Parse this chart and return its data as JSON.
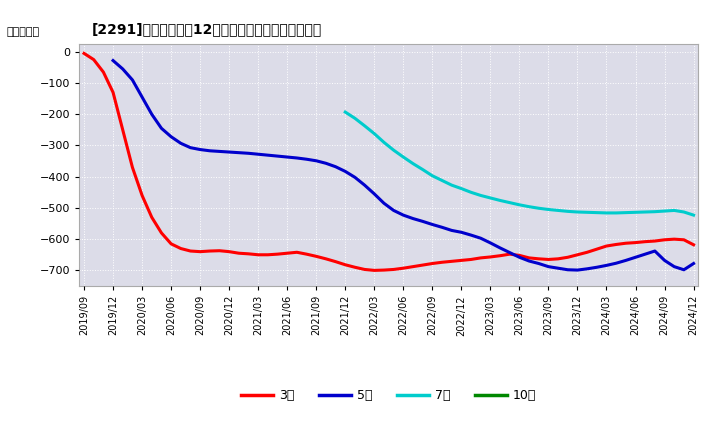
{
  "title": "[2291]　当期純利益12か月移動合計の平均値の推移",
  "ylabel": "（百万円）",
  "ylim": [
    -750,
    25
  ],
  "yticks": [
    0,
    -100,
    -200,
    -300,
    -400,
    -500,
    -600,
    -700
  ],
  "background_color": "#ffffff",
  "plot_bg_color": "#dcdce8",
  "grid_color": "#ffffff",
  "series": {
    "3year": {
      "color": "#ff0000",
      "label": "3年",
      "x": [
        0,
        1,
        2,
        3,
        4,
        5,
        6,
        7,
        8,
        9,
        10,
        11,
        12,
        13,
        14,
        15,
        16,
        17,
        18,
        19,
        20,
        21,
        22,
        23,
        24,
        25,
        26,
        27,
        28,
        29,
        30,
        31,
        32,
        33,
        34,
        35,
        36,
        37,
        38,
        39,
        40,
        41,
        42,
        43,
        44,
        45,
        46,
        47,
        48,
        49,
        50,
        51,
        52,
        53,
        54,
        55,
        56,
        57,
        58,
        59,
        60,
        61,
        62,
        63
      ],
      "y": [
        -5,
        -25,
        -65,
        -130,
        -250,
        -370,
        -460,
        -530,
        -580,
        -615,
        -630,
        -638,
        -640,
        -638,
        -637,
        -640,
        -645,
        -647,
        -650,
        -650,
        -648,
        -645,
        -642,
        -648,
        -655,
        -663,
        -672,
        -682,
        -690,
        -697,
        -700,
        -699,
        -697,
        -693,
        -688,
        -683,
        -678,
        -674,
        -671,
        -668,
        -665,
        -660,
        -657,
        -653,
        -648,
        -652,
        -660,
        -663,
        -665,
        -663,
        -658,
        -650,
        -642,
        -632,
        -622,
        -617,
        -613,
        -611,
        -608,
        -606,
        -602,
        -600,
        -602,
        -618
      ]
    },
    "5year": {
      "color": "#0000cc",
      "label": "5年",
      "x": [
        3,
        4,
        5,
        6,
        7,
        8,
        9,
        10,
        11,
        12,
        13,
        14,
        15,
        16,
        17,
        18,
        19,
        20,
        21,
        22,
        23,
        24,
        25,
        26,
        27,
        28,
        29,
        30,
        31,
        32,
        33,
        34,
        35,
        36,
        37,
        38,
        39,
        40,
        41,
        42,
        43,
        44,
        45,
        46,
        47,
        48,
        49,
        50,
        51,
        52,
        53,
        54,
        55,
        56,
        57,
        58,
        59,
        60,
        61,
        62,
        63
      ],
      "y": [
        -28,
        -55,
        -90,
        -145,
        -200,
        -245,
        -272,
        -293,
        -307,
        -313,
        -317,
        -319,
        -321,
        -323,
        -325,
        -328,
        -331,
        -334,
        -337,
        -340,
        -344,
        -349,
        -357,
        -368,
        -383,
        -402,
        -427,
        -455,
        -485,
        -508,
        -523,
        -534,
        -543,
        -553,
        -562,
        -572,
        -578,
        -587,
        -597,
        -612,
        -628,
        -643,
        -658,
        -670,
        -678,
        -688,
        -693,
        -698,
        -699,
        -695,
        -690,
        -684,
        -677,
        -668,
        -658,
        -648,
        -638,
        -668,
        -688,
        -698,
        -678
      ]
    },
    "7year": {
      "color": "#00cccc",
      "label": "7年",
      "x": [
        27,
        28,
        29,
        30,
        31,
        32,
        33,
        34,
        35,
        36,
        37,
        38,
        39,
        40,
        41,
        42,
        43,
        44,
        45,
        46,
        47,
        48,
        49,
        50,
        51,
        52,
        53,
        54,
        55,
        56,
        57,
        58,
        59,
        60,
        61,
        62,
        63
      ],
      "y": [
        -193,
        -213,
        -237,
        -262,
        -290,
        -315,
        -337,
        -358,
        -377,
        -397,
        -412,
        -427,
        -438,
        -450,
        -460,
        -468,
        -476,
        -483,
        -490,
        -496,
        -501,
        -505,
        -508,
        -511,
        -513,
        -514,
        -515,
        -516,
        -516,
        -515,
        -514,
        -513,
        -512,
        -510,
        -508,
        -513,
        -523
      ]
    },
    "10year": {
      "color": "#008800",
      "label": "10年",
      "x": [],
      "y": []
    }
  },
  "xtick_labels": [
    "2019/09",
    "2019/12",
    "2020/03",
    "2020/06",
    "2020/09",
    "2020/12",
    "2021/03",
    "2021/06",
    "2021/09",
    "2021/12",
    "2022/03",
    "2022/06",
    "2022/09",
    "2022/12",
    "2023/03",
    "2023/06",
    "2023/09",
    "2023/12",
    "2024/03",
    "2024/06",
    "2024/09",
    "2024/12"
  ],
  "xtick_positions": [
    0,
    3,
    6,
    9,
    12,
    15,
    18,
    21,
    24,
    27,
    30,
    33,
    36,
    39,
    42,
    45,
    48,
    51,
    54,
    57,
    60,
    63
  ]
}
